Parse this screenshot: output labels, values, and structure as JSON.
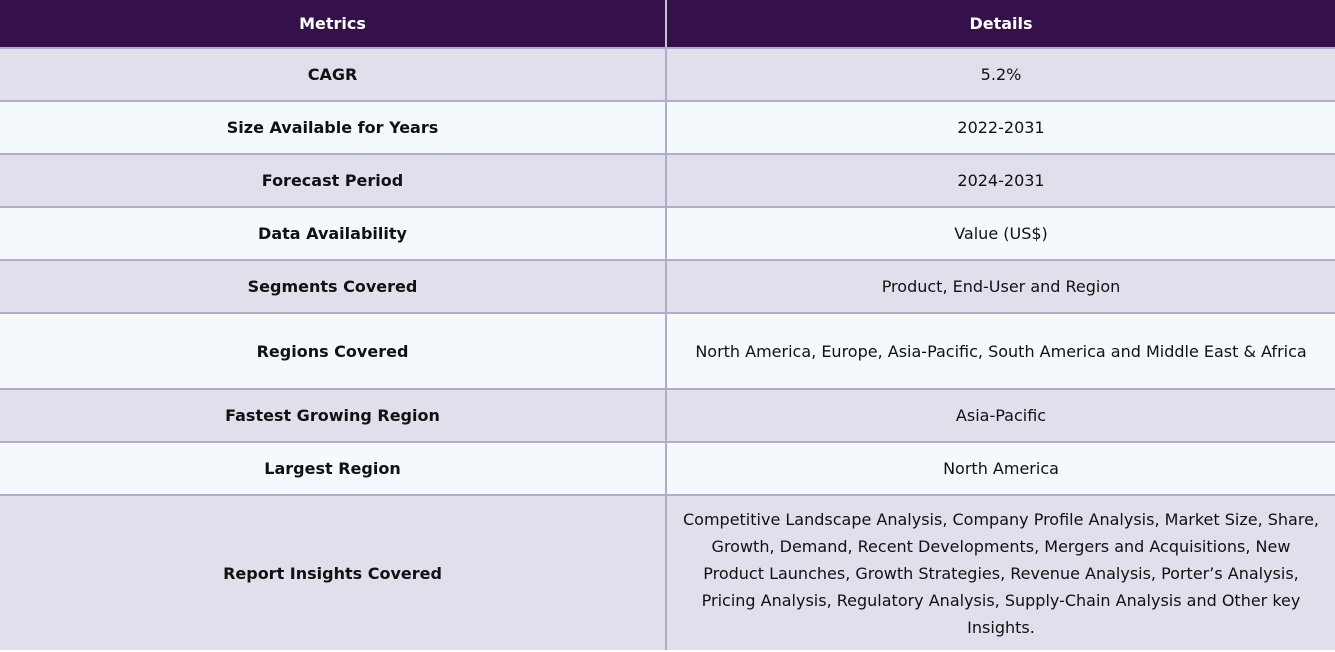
{
  "table": {
    "headers": [
      "Metrics",
      "Details"
    ],
    "rows": [
      {
        "metric": "CAGR",
        "detail": "5.2%"
      },
      {
        "metric": "Size Available for Years",
        "detail": "2022-2031"
      },
      {
        "metric": "Forecast Period",
        "detail": "2024-2031"
      },
      {
        "metric": "Data Availability",
        "detail": "Value (US$)"
      },
      {
        "metric": "Segments Covered",
        "detail": "Product, End-User and Region"
      },
      {
        "metric": "Regions Covered",
        "detail": "North America, Europe, Asia-Pacific, South America and Middle East & Africa"
      },
      {
        "metric": "Fastest Growing Region",
        "detail": "Asia-Pacific"
      },
      {
        "metric": "Largest Region",
        "detail": "North America"
      },
      {
        "metric": "Report Insights Covered",
        "detail": "Competitive Landscape Analysis, Company Profile Analysis, Market Size, Share, Growth, Demand, Recent Developments, Mergers and Acquisitions, New Product Launches, Growth Strategies, Revenue Analysis, Porter’s Analysis, Pricing Analysis, Regulatory Analysis, Supply-Chain Analysis and Other key Insights."
      }
    ]
  },
  "colors": {
    "header_bg": "#35114a",
    "row_shade": "#e1dfeb",
    "row_light": "#f3f9fc",
    "border": "#b2abc9"
  }
}
